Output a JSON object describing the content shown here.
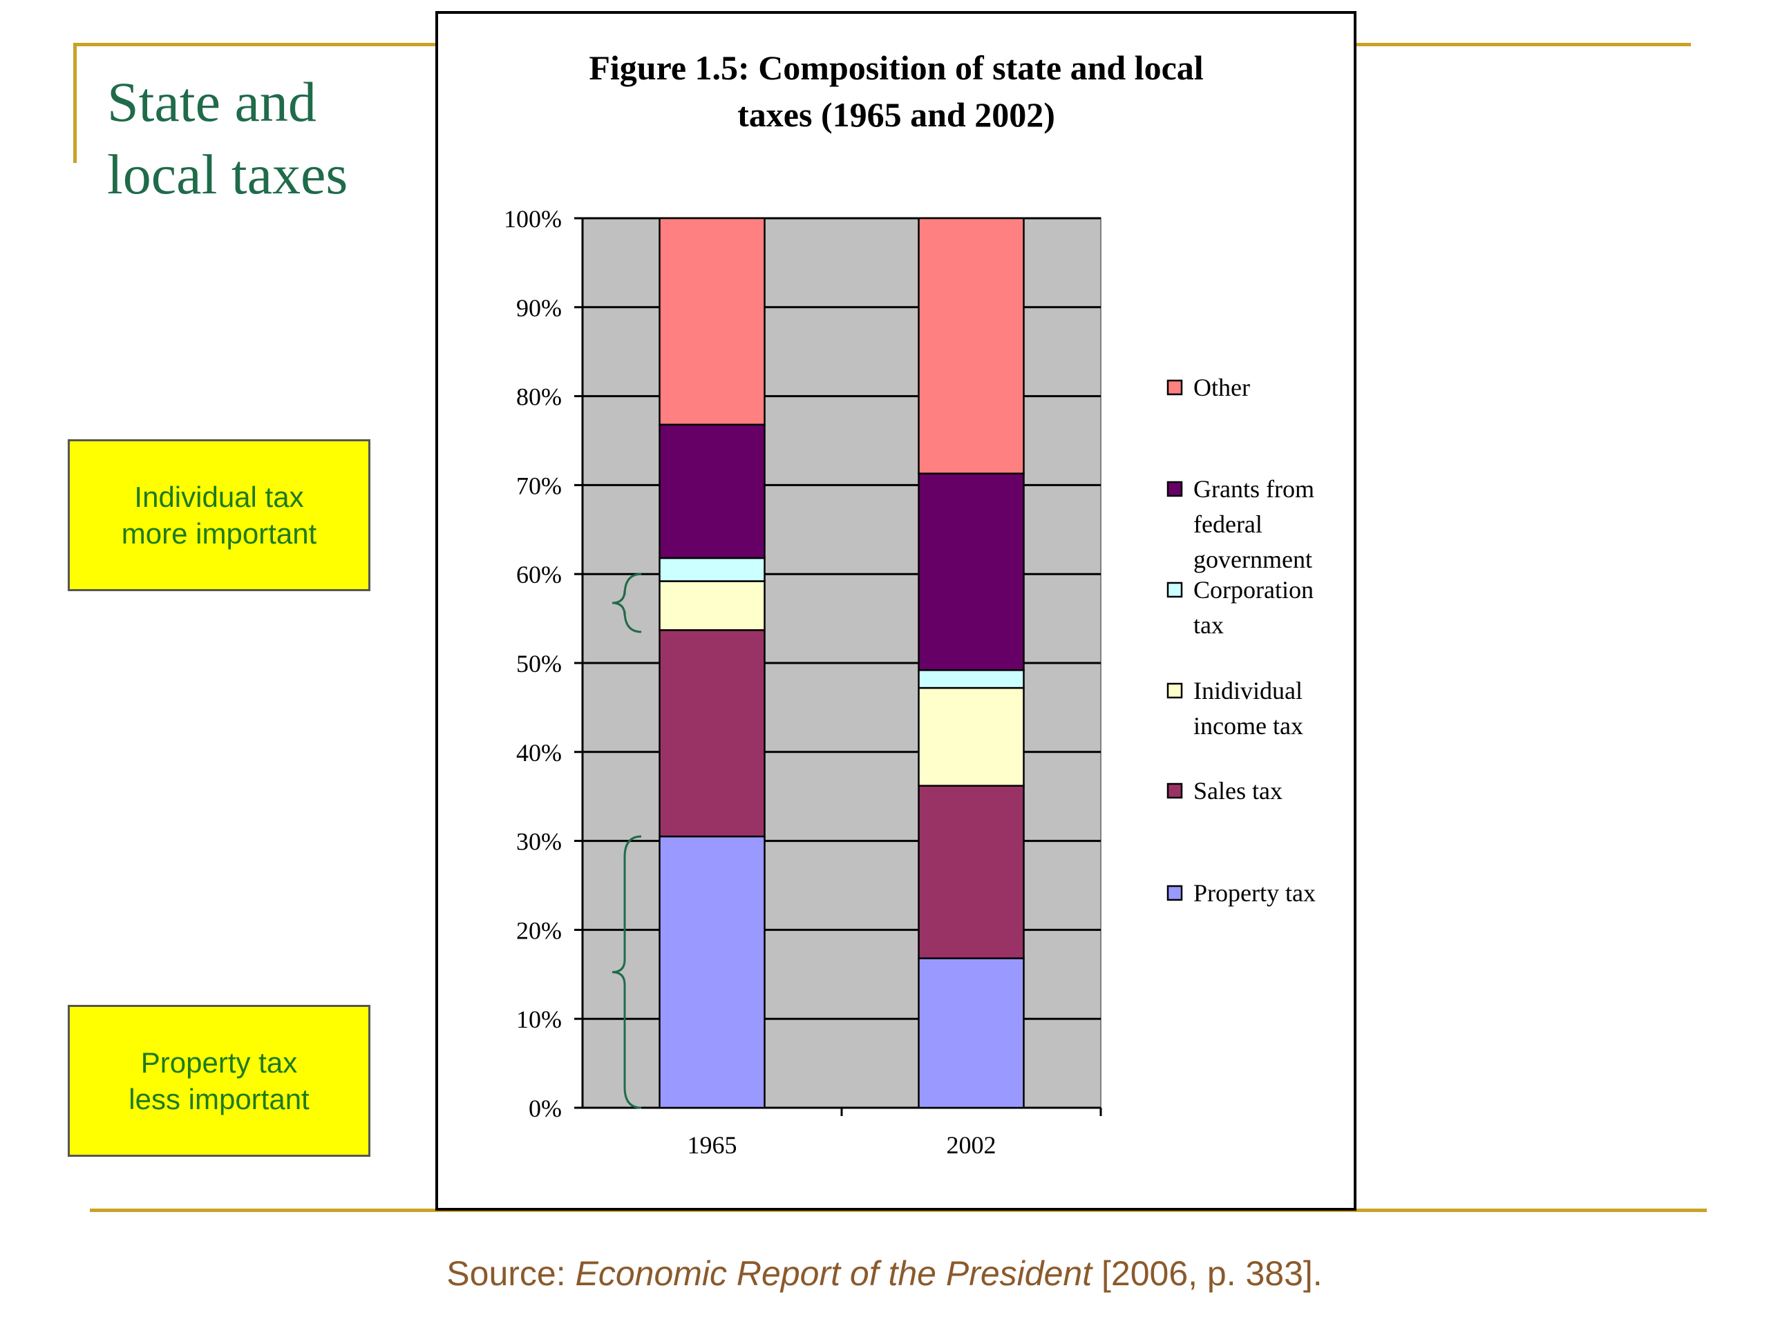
{
  "slide": {
    "title_line1": "State and",
    "title_line2": "local taxes",
    "callout_individual_line1": "Individual tax",
    "callout_individual_line2": "more important",
    "callout_property_line1": "Property tax",
    "callout_property_line2": "less important",
    "source_prefix": "Source: ",
    "source_title": "Economic Report of the President",
    "source_suffix": " [2006, p. 383]."
  },
  "chart_data": {
    "type": "bar",
    "stacked": true,
    "title_line1": "Figure 1.5: Composition of state and local",
    "title_line2": "taxes (1965 and 2002)",
    "categories": [
      "1965",
      "2002"
    ],
    "yticks": [
      "0%",
      "10%",
      "20%",
      "30%",
      "40%",
      "50%",
      "60%",
      "70%",
      "80%",
      "90%",
      "100%"
    ],
    "ylim": [
      0,
      100
    ],
    "grid": true,
    "legend_position": "right",
    "series": [
      {
        "name": "Property tax",
        "values": [
          30.5,
          16.8
        ],
        "color": "#9999ff"
      },
      {
        "name": "Sales tax",
        "values": [
          23.2,
          19.4
        ],
        "color": "#993366"
      },
      {
        "name": "Inidividual income tax",
        "values": [
          5.5,
          11.0
        ],
        "color": "#ffffcc"
      },
      {
        "name": "Corporation tax",
        "values": [
          2.6,
          2.0
        ],
        "color": "#ccffff"
      },
      {
        "name": "Grants from federal government",
        "values": [
          15.0,
          22.1
        ],
        "color": "#660066"
      },
      {
        "name": "Other",
        "values": [
          23.2,
          28.7
        ],
        "color": "#ff8080"
      }
    ],
    "legend_lines": [
      [
        "Other"
      ],
      [
        "Grants from",
        "federal",
        "government"
      ],
      [
        "Corporation",
        "tax"
      ],
      [
        "Inidividual",
        "income tax"
      ],
      [
        "Sales tax"
      ],
      [
        "Property tax"
      ]
    ]
  }
}
